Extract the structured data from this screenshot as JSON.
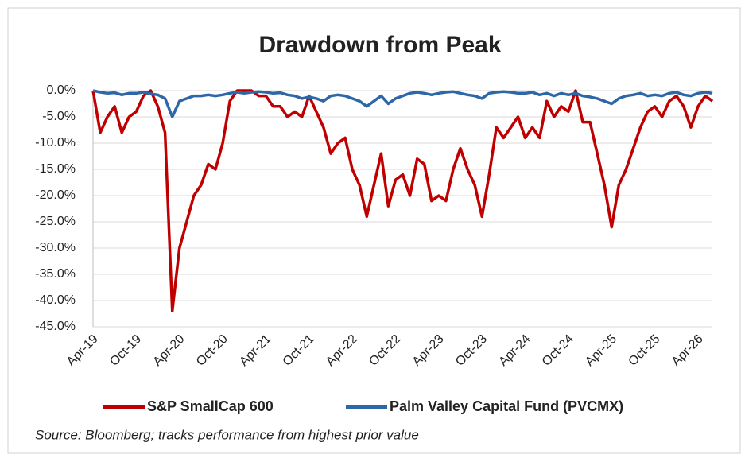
{
  "chart_data": {
    "type": "line",
    "title": "Drawdown from Peak",
    "source": "Source: Bloomberg; tracks performance from highest prior value",
    "categories": [
      "Apr-19",
      null,
      null,
      null,
      null,
      null,
      "Oct-19",
      null,
      null,
      null,
      null,
      null,
      "Apr-20",
      null,
      null,
      null,
      null,
      null,
      "Oct-20",
      null,
      null,
      null,
      null,
      null,
      "Apr-21",
      null,
      null,
      null,
      null,
      null,
      "Oct-21",
      null,
      null,
      null,
      null,
      null,
      "Apr-22",
      null,
      null,
      null,
      null,
      null,
      "Oct-22",
      null,
      null,
      null,
      null,
      null,
      "Apr-23",
      null,
      null,
      null,
      null,
      null,
      "Oct-23",
      null,
      null,
      null,
      null,
      null,
      "Apr-24",
      null,
      null,
      null,
      null,
      null,
      "Oct-24",
      null,
      null,
      null,
      null,
      null,
      "Apr-25",
      null,
      null,
      null,
      null,
      null,
      "Oct-25",
      null,
      null,
      null,
      null,
      null,
      "Apr-26",
      null,
      null
    ],
    "series": [
      {
        "name": "S&P SmallCap 600",
        "color": "#c00000",
        "values": [
          0,
          -8,
          -5,
          -3,
          -8,
          -5,
          -4,
          -1,
          0,
          -3,
          -8,
          -42,
          -30,
          -25,
          -20,
          -18,
          -14,
          -15,
          -10,
          -2,
          0,
          0,
          0,
          -1,
          -1,
          -3,
          -3,
          -5,
          -4,
          -5,
          -1,
          -4,
          -7,
          -12,
          -10,
          -9,
          -15,
          -18,
          -24,
          -18,
          -12,
          -22,
          -17,
          -16,
          -20,
          -13,
          -14,
          -21,
          -20,
          -21,
          -15,
          -11,
          -15,
          -18,
          -24,
          -16,
          -7,
          -9,
          -7,
          -5,
          -9,
          -7,
          -9,
          -2,
          -5,
          -3,
          -4,
          0,
          -6,
          -6,
          -12,
          -18,
          -26,
          -18,
          -15,
          -11,
          -7,
          -4,
          -3,
          -5,
          -2,
          -1,
          -3,
          -7,
          -3,
          -1,
          -2
        ]
      },
      {
        "name": "Palm Valley Capital Fund (PVCMX)",
        "color": "#2e67a8",
        "values": [
          0,
          -0.3,
          -0.5,
          -0.4,
          -0.8,
          -0.5,
          -0.5,
          -0.3,
          -0.6,
          -0.8,
          -1.5,
          -5,
          -2,
          -1.5,
          -1,
          -1,
          -0.8,
          -1,
          -0.8,
          -0.5,
          -0.3,
          -0.5,
          -0.3,
          -0.2,
          -0.3,
          -0.5,
          -0.4,
          -0.8,
          -1,
          -1.5,
          -1.2,
          -1.5,
          -2,
          -1,
          -0.8,
          -1,
          -1.5,
          -2,
          -3,
          -2,
          -1,
          -2.5,
          -1.5,
          -1,
          -0.5,
          -0.3,
          -0.5,
          -0.8,
          -0.5,
          -0.3,
          -0.2,
          -0.5,
          -0.8,
          -1,
          -1.5,
          -0.5,
          -0.3,
          -0.2,
          -0.3,
          -0.5,
          -0.5,
          -0.3,
          -0.8,
          -0.5,
          -1,
          -0.5,
          -0.8,
          -0.5,
          -1,
          -1.2,
          -1.5,
          -2,
          -2.5,
          -1.5,
          -1,
          -0.8,
          -0.5,
          -1,
          -0.8,
          -1,
          -0.5,
          -0.3,
          -0.8,
          -1,
          -0.5,
          -0.3,
          -0.5
        ]
      }
    ],
    "ylim": [
      -45,
      0
    ],
    "yticks": [
      {
        "value": 0,
        "label": "0.0%"
      },
      {
        "value": -5,
        "label": "-5.0%"
      },
      {
        "value": -10,
        "label": "-10.0%"
      },
      {
        "value": -15,
        "label": "-15.0%"
      },
      {
        "value": -20,
        "label": "-20.0%"
      },
      {
        "value": -25,
        "label": "-25.0%"
      },
      {
        "value": -30,
        "label": "-30.0%"
      },
      {
        "value": -35,
        "label": "-35.0%"
      },
      {
        "value": -40,
        "label": "-40.0%"
      },
      {
        "value": -45,
        "label": "-45.0%"
      }
    ],
    "grid": true,
    "legend": "bottom"
  }
}
